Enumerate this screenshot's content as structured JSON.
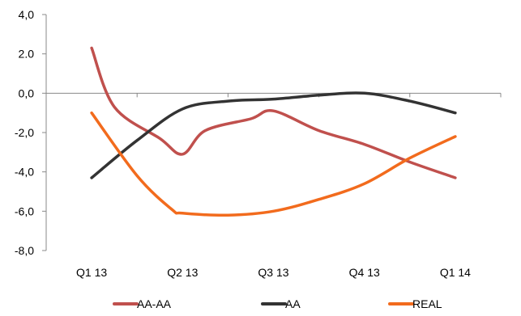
{
  "chart_data": {
    "type": "line",
    "categories": [
      "Q1 13",
      "Q2 13",
      "Q3 13",
      "Q4 13",
      "Q1 14"
    ],
    "y_ticks": [
      "4,0",
      "2.0",
      "0,0",
      "-2,0",
      "-4,0",
      "-6,0",
      "-8,0"
    ],
    "ylim": [
      -8,
      4
    ],
    "smooth": true,
    "grid": false,
    "legend_position": "bottom",
    "series": [
      {
        "name": "AA-AA",
        "color": "#c0504d",
        "values": [
          2.3,
          -3.1,
          -0.9,
          -2.6,
          -4.3
        ]
      },
      {
        "name": "AA",
        "color": "#333333",
        "values": [
          -4.3,
          -0.8,
          -0.3,
          0.0,
          -1.0
        ]
      },
      {
        "name": "REAL",
        "color": "#f26b1d",
        "values": [
          -1.0,
          -6.1,
          -6.0,
          -4.6,
          -2.2
        ]
      }
    ],
    "intermediate_points": {
      "AA-AA": [
        [
          0.25,
          -0.7
        ],
        [
          0.75,
          -2.3
        ],
        [
          1.25,
          -1.9
        ],
        [
          1.75,
          -1.3
        ],
        [
          2.5,
          -1.9
        ],
        [
          3.5,
          -3.5
        ]
      ],
      "AA": [
        [
          0.5,
          -2.4
        ],
        [
          1.5,
          -0.4
        ],
        [
          2.5,
          -0.1
        ],
        [
          3.5,
          -0.4
        ]
      ],
      "REAL": [
        [
          0.5,
          -4.2
        ],
        [
          0.88,
          -5.9
        ],
        [
          1.5,
          -6.2
        ],
        [
          2.5,
          -5.4
        ],
        [
          3.5,
          -3.3
        ]
      ]
    }
  }
}
